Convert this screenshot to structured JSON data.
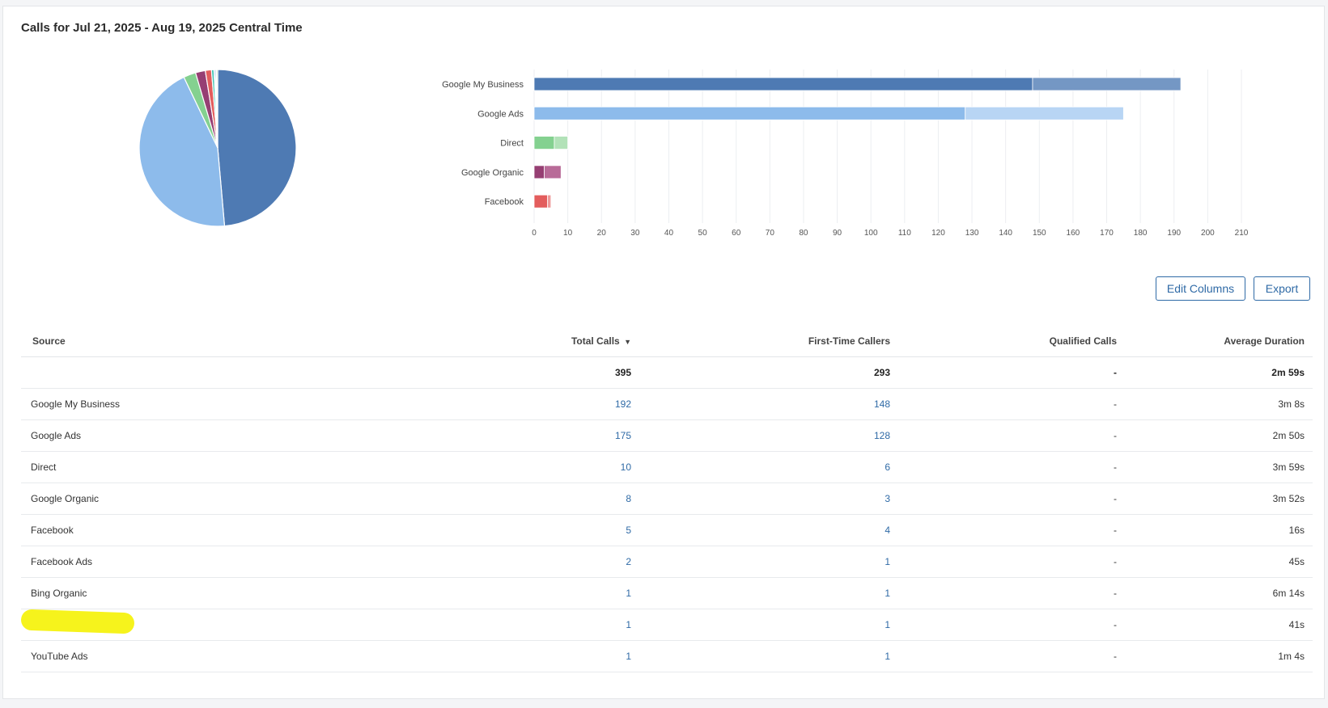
{
  "title": "Calls for Jul 21, 2025 - Aug 19, 2025 Central Time",
  "colors": {
    "google_my_business": "#4e7ab3",
    "google_my_business_light": "#7497c4",
    "google_ads": "#8dbbeb",
    "google_ads_light": "#b8d5f4",
    "direct": "#84d190",
    "direct_light": "#b2e2b8",
    "google_organic": "#963f73",
    "google_organic_light": "#b86b98",
    "facebook": "#e35d5d",
    "facebook_light": "#ee9a9a",
    "teal": "#3cc3b0",
    "button_border": "#2f6aa6"
  },
  "chart_data": [
    {
      "type": "pie",
      "categories": [
        "Google My Business",
        "Google Ads",
        "Direct",
        "Google Organic",
        "Facebook",
        "Facebook Ads",
        "Bing Organic",
        "",
        "YouTube Ads"
      ],
      "values": [
        192,
        175,
        10,
        8,
        5,
        2,
        1,
        1,
        1
      ],
      "colors": [
        "#4e7ab3",
        "#8dbbeb",
        "#84d190",
        "#963f73",
        "#e35d5d",
        "#3cc3b0",
        "#4e7ab3",
        "#8dbbeb",
        "#84d190"
      ]
    },
    {
      "type": "bar",
      "orientation": "horizontal",
      "stacked": true,
      "categories": [
        "Google My Business",
        "Google Ads",
        "Direct",
        "Google Organic",
        "Facebook"
      ],
      "series": [
        {
          "values": [
            148,
            128,
            6,
            3,
            4
          ],
          "colors": [
            "#4e7ab3",
            "#8dbbeb",
            "#84d190",
            "#963f73",
            "#e35d5d"
          ]
        },
        {
          "values": [
            44,
            47,
            4,
            5,
            1
          ],
          "colors": [
            "#7497c4",
            "#b8d5f4",
            "#b2e2b8",
            "#b86b98",
            "#ee9a9a"
          ]
        }
      ],
      "xlim": [
        0,
        210
      ],
      "xticks": [
        0,
        10,
        20,
        30,
        40,
        50,
        60,
        70,
        80,
        90,
        100,
        110,
        120,
        130,
        140,
        150,
        160,
        170,
        180,
        190,
        200,
        210
      ],
      "grid": true
    }
  ],
  "buttons": {
    "edit_columns": "Edit Columns",
    "export": "Export"
  },
  "table": {
    "headers": {
      "source": "Source",
      "total_calls": "Total Calls",
      "first_time_callers": "First-Time Callers",
      "qualified_calls": "Qualified Calls",
      "average_duration": "Average Duration"
    },
    "sort_icon": "▼",
    "total_row": {
      "source": "",
      "total_calls": "395",
      "first_time_callers": "293",
      "qualified_calls": "-",
      "average_duration": "2m 59s"
    },
    "rows": [
      {
        "source": "Google My Business",
        "total_calls": "192",
        "first_time_callers": "148",
        "qualified_calls": "-",
        "average_duration": "3m 8s"
      },
      {
        "source": "Google Ads",
        "total_calls": "175",
        "first_time_callers": "128",
        "qualified_calls": "-",
        "average_duration": "2m 50s"
      },
      {
        "source": "Direct",
        "total_calls": "10",
        "first_time_callers": "6",
        "qualified_calls": "-",
        "average_duration": "3m 59s"
      },
      {
        "source": "Google Organic",
        "total_calls": "8",
        "first_time_callers": "3",
        "qualified_calls": "-",
        "average_duration": "3m 52s"
      },
      {
        "source": "Facebook",
        "total_calls": "5",
        "first_time_callers": "4",
        "qualified_calls": "-",
        "average_duration": "16s"
      },
      {
        "source": "Facebook Ads",
        "total_calls": "2",
        "first_time_callers": "1",
        "qualified_calls": "-",
        "average_duration": "45s"
      },
      {
        "source": "Bing Organic",
        "total_calls": "1",
        "first_time_callers": "1",
        "qualified_calls": "-",
        "average_duration": "6m 14s"
      },
      {
        "source": "",
        "total_calls": "1",
        "first_time_callers": "1",
        "qualified_calls": "-",
        "average_duration": "41s",
        "redacted": true
      },
      {
        "source": "YouTube Ads",
        "total_calls": "1",
        "first_time_callers": "1",
        "qualified_calls": "-",
        "average_duration": "1m 4s"
      }
    ]
  }
}
